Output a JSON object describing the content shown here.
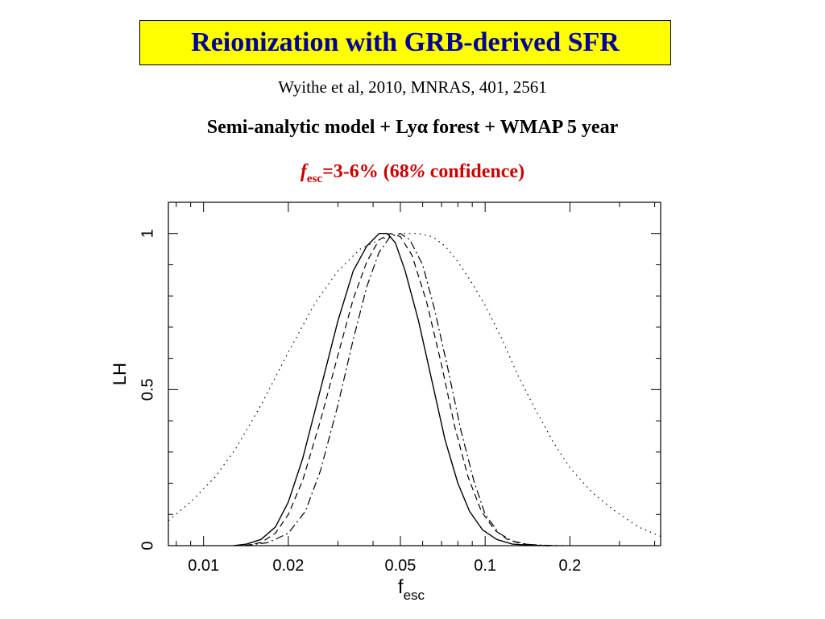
{
  "slide": {
    "title": "Reionization with GRB-derived SFR",
    "citation": "Wyithe et al, 2010, MNRAS, 401, 2561",
    "model_prefix": "Semi-analytic model + Ly",
    "model_alpha": "α",
    "model_suffix": " forest + WMAP 5 year",
    "conf_f": "f",
    "conf_sub": "esc",
    "conf_range": "=3-6%",
    "conf_paren_open": " (68",
    "conf_percent": "%",
    "conf_rest": " confidence)"
  },
  "colors": {
    "title_bg": "#ffff00",
    "title_text": "#000099",
    "confidence_text": "#cc0000"
  },
  "chart_data": {
    "type": "line",
    "xscale": "log",
    "xlim": [
      0.0075,
      0.42
    ],
    "ylim": [
      0,
      1.1
    ],
    "xticks": [
      {
        "value": 0.01,
        "label": "0.01"
      },
      {
        "value": 0.02,
        "label": "0.02"
      },
      {
        "value": 0.05,
        "label": "0.05"
      },
      {
        "value": 0.1,
        "label": "0.1"
      },
      {
        "value": 0.2,
        "label": "0.2"
      }
    ],
    "yticks": [
      {
        "value": 0,
        "label": "0"
      },
      {
        "value": 0.5,
        "label": "0.5"
      },
      {
        "value": 1,
        "label": "1"
      }
    ],
    "ylabel": "LH",
    "xlabel_main": "f",
    "xlabel_sub": "esc",
    "series": [
      {
        "style": "solid",
        "x": [
          0.0128,
          0.0142,
          0.016,
          0.018,
          0.02,
          0.0225,
          0.026,
          0.03,
          0.034,
          0.038,
          0.042,
          0.045,
          0.048,
          0.052,
          0.058,
          0.065,
          0.072,
          0.08,
          0.088,
          0.098,
          0.11,
          0.125,
          0.145,
          0.17
        ],
        "y": [
          0.0,
          0.005,
          0.02,
          0.06,
          0.14,
          0.28,
          0.5,
          0.72,
          0.88,
          0.96,
          1.0,
          1.0,
          0.97,
          0.88,
          0.72,
          0.52,
          0.34,
          0.2,
          0.11,
          0.05,
          0.02,
          0.005,
          0.001,
          0.0
        ]
      },
      {
        "style": "dashed",
        "x": [
          0.014,
          0.016,
          0.018,
          0.02,
          0.0225,
          0.026,
          0.03,
          0.034,
          0.038,
          0.042,
          0.046,
          0.05,
          0.055,
          0.062,
          0.07,
          0.078,
          0.087,
          0.097,
          0.108,
          0.12,
          0.135,
          0.155,
          0.18
        ],
        "y": [
          0.0,
          0.01,
          0.04,
          0.1,
          0.21,
          0.4,
          0.61,
          0.79,
          0.91,
          0.98,
          1.0,
          0.99,
          0.93,
          0.78,
          0.58,
          0.38,
          0.22,
          0.11,
          0.05,
          0.02,
          0.006,
          0.001,
          0.0
        ]
      },
      {
        "style": "dashdot",
        "x": [
          0.014,
          0.017,
          0.02,
          0.023,
          0.026,
          0.03,
          0.034,
          0.038,
          0.042,
          0.046,
          0.05,
          0.054,
          0.06,
          0.066,
          0.074,
          0.082,
          0.091,
          0.1,
          0.112,
          0.125,
          0.142,
          0.165,
          0.19
        ],
        "y": [
          0.0,
          0.01,
          0.04,
          0.11,
          0.24,
          0.45,
          0.66,
          0.83,
          0.94,
          0.99,
          1.0,
          0.98,
          0.9,
          0.76,
          0.56,
          0.37,
          0.21,
          0.1,
          0.04,
          0.015,
          0.004,
          0.001,
          0.0
        ]
      },
      {
        "style": "dotted",
        "x": [
          0.0075,
          0.009,
          0.011,
          0.013,
          0.016,
          0.02,
          0.025,
          0.03,
          0.036,
          0.042,
          0.05,
          0.058,
          0.065,
          0.072,
          0.08,
          0.09,
          0.1,
          0.115,
          0.13,
          0.15,
          0.175,
          0.2,
          0.24,
          0.29,
          0.35,
          0.42
        ],
        "y": [
          0.08,
          0.14,
          0.22,
          0.31,
          0.45,
          0.62,
          0.78,
          0.88,
          0.95,
          0.98,
          1.0,
          1.0,
          0.99,
          0.96,
          0.91,
          0.84,
          0.77,
          0.66,
          0.55,
          0.44,
          0.33,
          0.25,
          0.17,
          0.11,
          0.06,
          0.03
        ]
      }
    ]
  }
}
